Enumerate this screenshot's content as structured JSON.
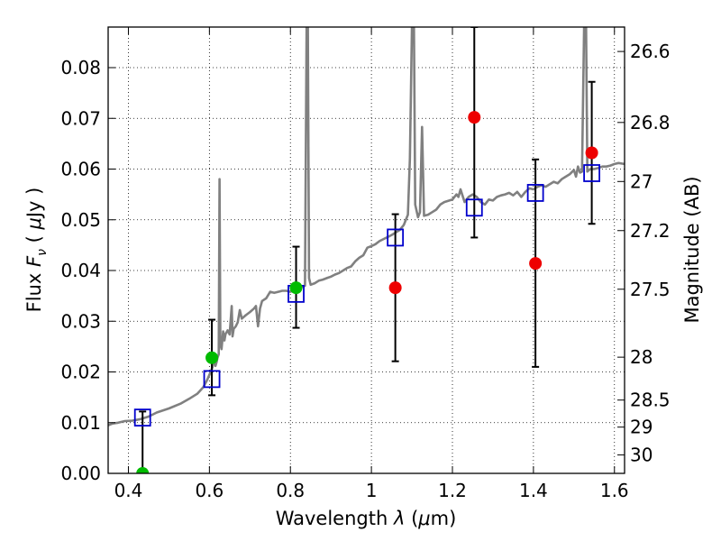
{
  "chart_data": {
    "type": "scatter",
    "xlabel_prefix": "Wavelength  ",
    "xlabel_symbol": "λ",
    "xlabel_unit_open": " (",
    "xlabel_unit_mu": "μ",
    "xlabel_unit_close": "m)",
    "ylabel_prefix": "Flux  ",
    "ylabel_symbol": "F",
    "ylabel_subscript": "ν",
    "ylabel_unit_open": "  (  ",
    "ylabel_unit_mu": "μ",
    "ylabel_unit_close": "Jy  )",
    "ylabel_right": "Magnitude (AB)",
    "xlim": [
      0.35,
      1.625
    ],
    "ylim": [
      0.0,
      0.088
    ],
    "x_ticks": [
      {
        "value": 0.4,
        "label": "0.4"
      },
      {
        "value": 0.6,
        "label": "0.6"
      },
      {
        "value": 0.8,
        "label": "0.8"
      },
      {
        "value": 1.0,
        "label": "1"
      },
      {
        "value": 1.2,
        "label": "1.2"
      },
      {
        "value": 1.4,
        "label": "1.4"
      },
      {
        "value": 1.6,
        "label": "1.6"
      }
    ],
    "y_ticks": [
      {
        "value": 0.0,
        "label": "0.00"
      },
      {
        "value": 0.01,
        "label": "0.01"
      },
      {
        "value": 0.02,
        "label": "0.02"
      },
      {
        "value": 0.03,
        "label": "0.03"
      },
      {
        "value": 0.04,
        "label": "0.04"
      },
      {
        "value": 0.05,
        "label": "0.05"
      },
      {
        "value": 0.06,
        "label": "0.06"
      },
      {
        "value": 0.07,
        "label": "0.07"
      },
      {
        "value": 0.08,
        "label": "0.08"
      }
    ],
    "right_ticks": [
      {
        "mag": 26.6,
        "label": "26.6"
      },
      {
        "mag": 26.8,
        "label": "26.8"
      },
      {
        "mag": 27.0,
        "label": "27"
      },
      {
        "mag": 27.2,
        "label": "27.2"
      },
      {
        "mag": 27.5,
        "label": "27.5"
      },
      {
        "mag": 28.0,
        "label": "28"
      },
      {
        "mag": 28.5,
        "label": "28.5"
      },
      {
        "mag": 29.0,
        "label": "29"
      },
      {
        "mag": 30.0,
        "label": "30"
      }
    ],
    "grid": true,
    "colors": {
      "sed": "#808080",
      "model": "#0000cc",
      "detection": "#00bb00",
      "upper": "#ee0000",
      "errorbar": "#000000"
    },
    "sed_spectrum": [
      [
        0.35,
        0.0095
      ],
      [
        0.36,
        0.0098
      ],
      [
        0.375,
        0.01
      ],
      [
        0.39,
        0.0103
      ],
      [
        0.41,
        0.0104
      ],
      [
        0.43,
        0.0107
      ],
      [
        0.45,
        0.0112
      ],
      [
        0.47,
        0.012
      ],
      [
        0.5,
        0.0128
      ],
      [
        0.53,
        0.0138
      ],
      [
        0.55,
        0.0147
      ],
      [
        0.57,
        0.0157
      ],
      [
        0.585,
        0.017
      ],
      [
        0.595,
        0.0185
      ],
      [
        0.603,
        0.02
      ],
      [
        0.608,
        0.021
      ],
      [
        0.612,
        0.0228
      ],
      [
        0.615,
        0.0212
      ],
      [
        0.618,
        0.022
      ],
      [
        0.62,
        0.0228
      ],
      [
        0.623,
        0.0235
      ],
      [
        0.625,
        0.058
      ],
      [
        0.627,
        0.0255
      ],
      [
        0.63,
        0.0245
      ],
      [
        0.634,
        0.028
      ],
      [
        0.637,
        0.0262
      ],
      [
        0.64,
        0.0275
      ],
      [
        0.645,
        0.0282
      ],
      [
        0.65,
        0.0274
      ],
      [
        0.655,
        0.033
      ],
      [
        0.657,
        0.027
      ],
      [
        0.66,
        0.0285
      ],
      [
        0.665,
        0.029
      ],
      [
        0.67,
        0.0298
      ],
      [
        0.675,
        0.0322
      ],
      [
        0.68,
        0.0305
      ],
      [
        0.69,
        0.0312
      ],
      [
        0.7,
        0.0318
      ],
      [
        0.71,
        0.0325
      ],
      [
        0.715,
        0.033
      ],
      [
        0.72,
        0.029
      ],
      [
        0.725,
        0.0325
      ],
      [
        0.73,
        0.034
      ],
      [
        0.74,
        0.0345
      ],
      [
        0.75,
        0.0358
      ],
      [
        0.76,
        0.0356
      ],
      [
        0.77,
        0.0358
      ],
      [
        0.78,
        0.036
      ],
      [
        0.79,
        0.036
      ],
      [
        0.8,
        0.0358
      ],
      [
        0.81,
        0.0362
      ],
      [
        0.82,
        0.0365
      ],
      [
        0.83,
        0.0368
      ],
      [
        0.836,
        0.037
      ],
      [
        0.84,
        0.088
      ],
      [
        0.843,
        0.088
      ],
      [
        0.846,
        0.0385
      ],
      [
        0.85,
        0.0372
      ],
      [
        0.86,
        0.0375
      ],
      [
        0.87,
        0.038
      ],
      [
        0.88,
        0.0382
      ],
      [
        0.89,
        0.0385
      ],
      [
        0.9,
        0.0388
      ],
      [
        0.91,
        0.0392
      ],
      [
        0.92,
        0.0395
      ],
      [
        0.93,
        0.04
      ],
      [
        0.94,
        0.0405
      ],
      [
        0.95,
        0.0408
      ],
      [
        0.96,
        0.0418
      ],
      [
        0.97,
        0.0425
      ],
      [
        0.98,
        0.043
      ],
      [
        0.99,
        0.0445
      ],
      [
        1.0,
        0.0448
      ],
      [
        1.01,
        0.0452
      ],
      [
        1.02,
        0.0458
      ],
      [
        1.03,
        0.0462
      ],
      [
        1.04,
        0.0466
      ],
      [
        1.05,
        0.047
      ],
      [
        1.06,
        0.0475
      ],
      [
        1.07,
        0.048
      ],
      [
        1.08,
        0.049
      ],
      [
        1.09,
        0.051
      ],
      [
        1.095,
        0.062
      ],
      [
        1.1,
        0.088
      ],
      [
        1.105,
        0.088
      ],
      [
        1.108,
        0.053
      ],
      [
        1.115,
        0.0505
      ],
      [
        1.12,
        0.0515
      ],
      [
        1.125,
        0.0683
      ],
      [
        1.13,
        0.0508
      ],
      [
        1.14,
        0.051
      ],
      [
        1.15,
        0.0515
      ],
      [
        1.16,
        0.052
      ],
      [
        1.17,
        0.053
      ],
      [
        1.18,
        0.0535
      ],
      [
        1.2,
        0.054
      ],
      [
        1.21,
        0.055
      ],
      [
        1.215,
        0.0545
      ],
      [
        1.22,
        0.056
      ],
      [
        1.23,
        0.0535
      ],
      [
        1.24,
        0.0545
      ],
      [
        1.25,
        0.055
      ],
      [
        1.26,
        0.0545
      ],
      [
        1.27,
        0.0535
      ],
      [
        1.28,
        0.053
      ],
      [
        1.29,
        0.054
      ],
      [
        1.3,
        0.0538
      ],
      [
        1.31,
        0.0545
      ],
      [
        1.32,
        0.0548
      ],
      [
        1.33,
        0.055
      ],
      [
        1.34,
        0.0553
      ],
      [
        1.35,
        0.0548
      ],
      [
        1.36,
        0.0555
      ],
      [
        1.37,
        0.0545
      ],
      [
        1.38,
        0.0555
      ],
      [
        1.39,
        0.0562
      ],
      [
        1.4,
        0.056
      ],
      [
        1.41,
        0.0565
      ],
      [
        1.42,
        0.0568
      ],
      [
        1.43,
        0.0565
      ],
      [
        1.44,
        0.057
      ],
      [
        1.45,
        0.0575
      ],
      [
        1.46,
        0.0572
      ],
      [
        1.47,
        0.058
      ],
      [
        1.48,
        0.0585
      ],
      [
        1.49,
        0.059
      ],
      [
        1.5,
        0.0598
      ],
      [
        1.505,
        0.0585
      ],
      [
        1.51,
        0.0605
      ],
      [
        1.515,
        0.0593
      ],
      [
        1.52,
        0.0595
      ],
      [
        1.525,
        0.088
      ],
      [
        1.53,
        0.088
      ],
      [
        1.533,
        0.0595
      ],
      [
        1.54,
        0.06
      ],
      [
        1.55,
        0.06
      ],
      [
        1.56,
        0.0602
      ],
      [
        1.57,
        0.0605
      ],
      [
        1.58,
        0.0605
      ],
      [
        1.59,
        0.0607
      ],
      [
        1.6,
        0.061
      ],
      [
        1.61,
        0.0612
      ],
      [
        1.625,
        0.061
      ]
    ],
    "model_fluxes": [
      {
        "x": 0.435,
        "y": 0.011
      },
      {
        "x": 0.606,
        "y": 0.0186
      },
      {
        "x": 0.814,
        "y": 0.0354
      },
      {
        "x": 1.059,
        "y": 0.0465
      },
      {
        "x": 1.254,
        "y": 0.0524
      },
      {
        "x": 1.405,
        "y": 0.0553
      },
      {
        "x": 1.544,
        "y": 0.0592
      }
    ],
    "detections": [
      {
        "x": 0.435,
        "y": 0.0
      },
      {
        "x": 0.606,
        "y": 0.0228
      },
      {
        "x": 0.814,
        "y": 0.0366
      }
    ],
    "low_significance": [
      {
        "x": 1.059,
        "y": 0.0366
      },
      {
        "x": 1.254,
        "y": 0.0702
      },
      {
        "x": 1.405,
        "y": 0.0414
      },
      {
        "x": 1.544,
        "y": 0.0632
      }
    ],
    "error_bars": [
      {
        "x": 0.435,
        "y_low": 0.0,
        "y_high": 0.0122
      },
      {
        "x": 0.606,
        "y_low": 0.0154,
        "y_high": 0.0303
      },
      {
        "x": 0.814,
        "y_low": 0.0287,
        "y_high": 0.0447
      },
      {
        "x": 1.059,
        "y_low": 0.0221,
        "y_high": 0.0511
      },
      {
        "x": 1.254,
        "y_low": 0.0465,
        "y_high": 0.088
      },
      {
        "x": 1.405,
        "y_low": 0.021,
        "y_high": 0.0619
      },
      {
        "x": 1.544,
        "y_low": 0.0492,
        "y_high": 0.0772
      }
    ]
  }
}
